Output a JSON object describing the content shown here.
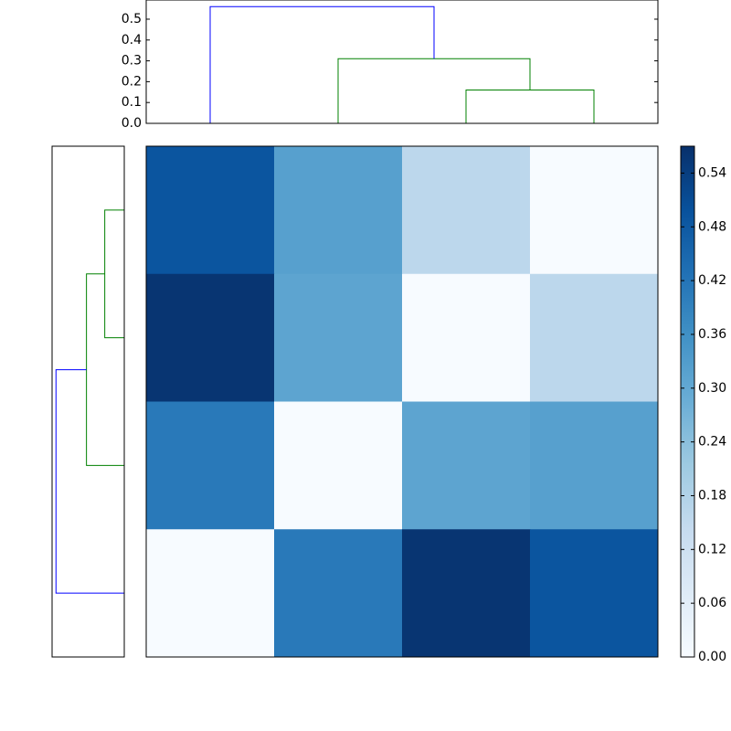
{
  "chart_data": {
    "type": "heatmap",
    "matrix": [
      [
        0.49,
        0.32,
        0.16,
        0
      ],
      [
        0.56,
        0.31,
        0,
        0.16
      ],
      [
        0.41,
        0,
        0.31,
        0.32
      ],
      [
        0,
        0.41,
        0.56,
        0.49
      ]
    ],
    "clim": [
      0,
      0.57
    ],
    "colormap": [
      "#f7fbff",
      "#deebf7",
      "#c6dbef",
      "#9ecae1",
      "#6baed6",
      "#4292c6",
      "#2171b5",
      "#08519c",
      "#08306b"
    ],
    "colorbar_ticks": [
      {
        "value": 0,
        "label": "0.00"
      },
      {
        "value": 0.06,
        "label": "0.06"
      },
      {
        "value": 0.12,
        "label": "0.12"
      },
      {
        "value": 0.18,
        "label": "0.18"
      },
      {
        "value": 0.24,
        "label": "0.24"
      },
      {
        "value": 0.3,
        "label": "0.30"
      },
      {
        "value": 0.36,
        "label": "0.36"
      },
      {
        "value": 0.42,
        "label": "0.42"
      },
      {
        "value": 0.48,
        "label": "0.48"
      },
      {
        "value": 0.54,
        "label": "0.54"
      }
    ],
    "dendrogram": {
      "merges": [
        {
          "join": [
            2,
            3
          ],
          "height": 0.16,
          "color": "#008000"
        },
        {
          "join": [
            1,
            4
          ],
          "height": 0.31,
          "color": "#008000"
        },
        {
          "join": [
            0,
            5
          ],
          "height": 0.56,
          "color": "#0000ff"
        }
      ],
      "ylim": [
        0,
        0.592
      ],
      "yticks": [
        {
          "value": 0,
          "label": "0.0"
        },
        0.1,
        0.2,
        0.3,
        0.4,
        0.5
      ]
    }
  }
}
